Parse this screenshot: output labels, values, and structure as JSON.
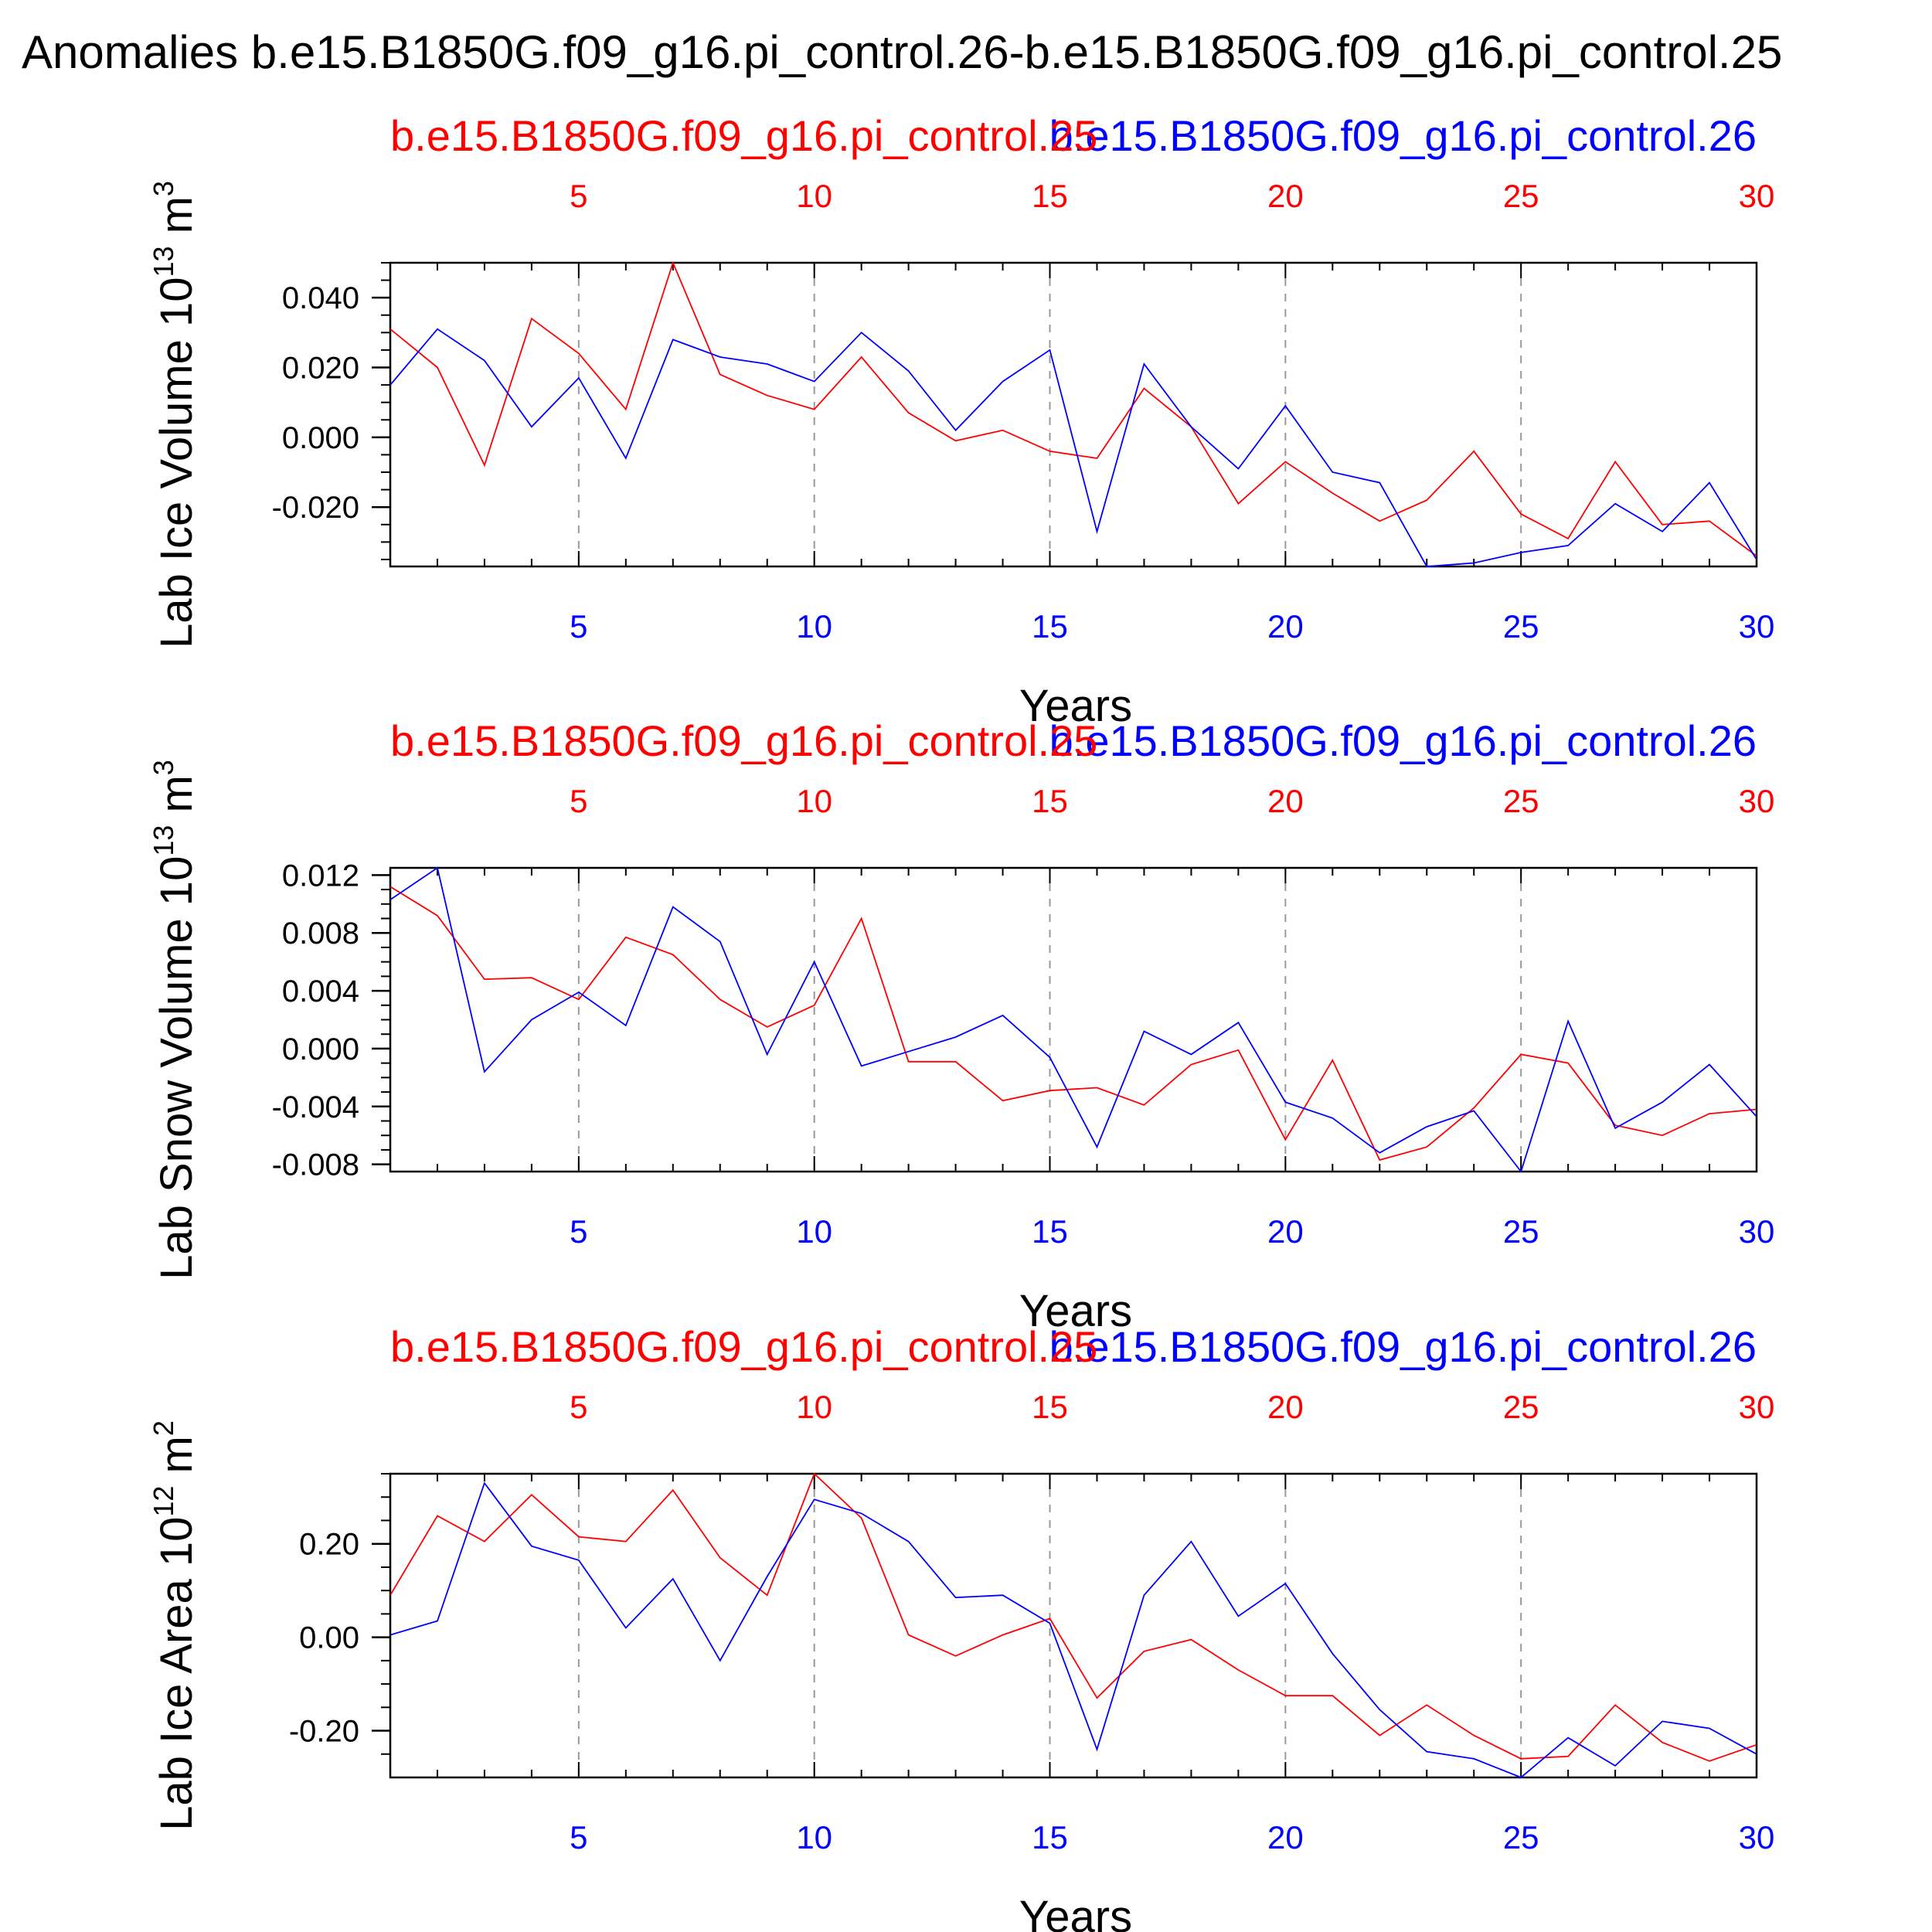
{
  "title": "Anomalies b.e15.B1850G.f09_g16.pi_control.26-b.e15.B1850G.f09_g16.pi_control.25",
  "colors": {
    "run_a": "#0000ff",
    "run_b": "#ff0000",
    "axis": "#000000",
    "grid": "#999999"
  },
  "chart_data": [
    {
      "type": "line",
      "ylabel": "Lab Ice Volume 10",
      "ylabel_exp": "13",
      "ylabel_unit": " m",
      "ylabel_unit_exp": "3",
      "xlabel": "Years",
      "xlim": [
        1,
        30
      ],
      "ylim": [
        -0.037,
        0.05
      ],
      "xticks": [
        5,
        10,
        15,
        20,
        25,
        30
      ],
      "yticks": [
        0.04,
        0.02,
        0.0,
        -0.02
      ],
      "ytick_labels": [
        "0.040",
        "0.020",
        "0.000",
        "-0.020"
      ],
      "grid": "vertical dashed at major x ticks",
      "x": [
        1,
        2,
        3,
        4,
        5,
        6,
        7,
        8,
        9,
        10,
        11,
        12,
        13,
        14,
        15,
        16,
        17,
        18,
        19,
        20,
        21,
        22,
        23,
        24,
        25,
        26,
        27,
        28,
        29,
        30
      ],
      "series": [
        {
          "name": "b.e15.B1850G.f09_g16.pi_control.26",
          "color": "#0000ff",
          "values": [
            0.015,
            0.031,
            0.022,
            0.003,
            0.017,
            -0.006,
            0.028,
            0.023,
            0.021,
            0.016,
            0.03,
            0.019,
            0.002,
            0.016,
            0.025,
            -0.027,
            0.021,
            0.003,
            -0.009,
            0.009,
            -0.01,
            -0.013,
            -0.037,
            -0.036,
            -0.033,
            -0.031,
            -0.019,
            -0.027,
            -0.013,
            -0.035
          ]
        },
        {
          "name": "b.e15.B1850G.f09_g16.pi_control.25",
          "color": "#ff0000",
          "values": [
            0.031,
            0.02,
            -0.008,
            0.034,
            0.024,
            0.008,
            0.05,
            0.018,
            0.012,
            0.008,
            0.023,
            0.007,
            -0.001,
            0.002,
            -0.004,
            -0.006,
            0.014,
            0.003,
            -0.019,
            -0.007,
            -0.016,
            -0.024,
            -0.018,
            -0.004,
            -0.022,
            -0.029,
            -0.007,
            -0.025,
            -0.024,
            -0.034
          ]
        }
      ]
    },
    {
      "type": "line",
      "ylabel": "Lab Snow Volume 10",
      "ylabel_exp": "13",
      "ylabel_unit": " m",
      "ylabel_unit_exp": "3",
      "xlabel": "Years",
      "xlim": [
        1,
        30
      ],
      "ylim": [
        -0.0085,
        0.0125
      ],
      "xticks": [
        5,
        10,
        15,
        20,
        25,
        30
      ],
      "yticks": [
        0.012,
        0.008,
        0.004,
        0.0,
        -0.004,
        -0.008
      ],
      "ytick_labels": [
        "0.012",
        "0.008",
        "0.004",
        "0.000",
        "-0.004",
        "-0.008"
      ],
      "grid": "vertical dashed at major x ticks",
      "x": [
        1,
        2,
        3,
        4,
        5,
        6,
        7,
        8,
        9,
        10,
        11,
        12,
        13,
        14,
        15,
        16,
        17,
        18,
        19,
        20,
        21,
        22,
        23,
        24,
        25,
        26,
        27,
        28,
        29,
        30
      ],
      "series": [
        {
          "name": "b.e15.B1850G.f09_g16.pi_control.26",
          "color": "#0000ff",
          "values": [
            0.0103,
            0.0125,
            -0.0016,
            0.002,
            0.0039,
            0.0016,
            0.0098,
            0.0074,
            -0.0004,
            0.006,
            -0.0012,
            -0.0002,
            0.0008,
            0.0023,
            -0.0006,
            -0.0068,
            0.0012,
            -0.0004,
            0.0018,
            -0.0037,
            -0.0048,
            -0.0072,
            -0.0054,
            -0.0043,
            -0.0085,
            0.0019,
            -0.0055,
            -0.0037,
            -0.0011,
            -0.0047
          ]
        },
        {
          "name": "b.e15.B1850G.f09_g16.pi_control.25",
          "color": "#ff0000",
          "values": [
            0.0112,
            0.0092,
            0.0048,
            0.0049,
            0.0034,
            0.0077,
            0.0065,
            0.0034,
            0.0015,
            0.003,
            0.009,
            -0.0009,
            -0.0009,
            -0.0036,
            -0.0029,
            -0.0027,
            -0.0039,
            -0.0011,
            -0.0001,
            -0.0063,
            -0.0008,
            -0.0077,
            -0.0068,
            -0.0041,
            -0.0004,
            -0.001,
            -0.0053,
            -0.006,
            -0.0045,
            -0.0042
          ]
        }
      ]
    },
    {
      "type": "line",
      "ylabel": "Lab Ice Area 10",
      "ylabel_exp": "12",
      "ylabel_unit": " m",
      "ylabel_unit_exp": "2",
      "xlabel": "Years",
      "xlim": [
        1,
        30
      ],
      "ylim": [
        -0.3,
        0.35
      ],
      "xticks": [
        5,
        10,
        15,
        20,
        25,
        30
      ],
      "yticks": [
        0.2,
        0.0,
        -0.2
      ],
      "ytick_labels": [
        "0.20",
        "0.00",
        "-0.20"
      ],
      "grid": "vertical dashed at major x ticks",
      "x": [
        1,
        2,
        3,
        4,
        5,
        6,
        7,
        8,
        9,
        10,
        11,
        12,
        13,
        14,
        15,
        16,
        17,
        18,
        19,
        20,
        21,
        22,
        23,
        24,
        25,
        26,
        27,
        28,
        29,
        30
      ],
      "series": [
        {
          "name": "b.e15.B1850G.f09_g16.pi_control.26",
          "color": "#0000ff",
          "values": [
            0.005,
            0.035,
            0.33,
            0.195,
            0.165,
            0.02,
            0.125,
            -0.05,
            0.13,
            0.295,
            0.265,
            0.205,
            0.085,
            0.09,
            0.03,
            -0.24,
            0.09,
            0.205,
            0.045,
            0.115,
            -0.035,
            -0.155,
            -0.245,
            -0.26,
            -0.3,
            -0.215,
            -0.275,
            -0.18,
            -0.195,
            -0.25
          ]
        },
        {
          "name": "b.e15.B1850G.f09_g16.pi_control.25",
          "color": "#ff0000",
          "values": [
            0.09,
            0.26,
            0.205,
            0.305,
            0.215,
            0.205,
            0.315,
            0.17,
            0.09,
            0.35,
            0.255,
            0.005,
            -0.04,
            0.005,
            0.04,
            -0.13,
            -0.03,
            -0.005,
            -0.07,
            -0.125,
            -0.125,
            -0.21,
            -0.145,
            -0.21,
            -0.26,
            -0.255,
            -0.145,
            -0.225,
            -0.265,
            -0.23
          ]
        }
      ]
    }
  ]
}
